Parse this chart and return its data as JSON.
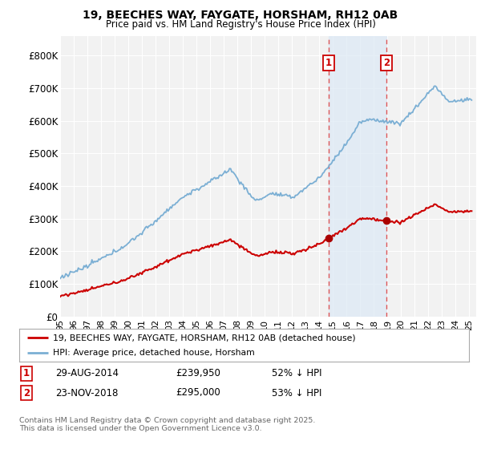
{
  "title1": "19, BEECHES WAY, FAYGATE, HORSHAM, RH12 0AB",
  "title2": "Price paid vs. HM Land Registry's House Price Index (HPI)",
  "background_color": "#ffffff",
  "plot_bg_color": "#f2f2f2",
  "grid_color": "#ffffff",
  "line1_color": "#cc0000",
  "line2_color": "#7bafd4",
  "fill2_color": "#dce9f5",
  "span_color": "#dce9f5",
  "marker_color": "#aa0000",
  "sale1_date": "29-AUG-2014",
  "sale1_price": 239950,
  "sale1_label": "£239,950",
  "sale1_hpi": "52% ↓ HPI",
  "sale2_date": "23-NOV-2018",
  "sale2_price": 295000,
  "sale2_label": "£295,000",
  "sale2_hpi": "53% ↓ HPI",
  "legend1": "19, BEECHES WAY, FAYGATE, HORSHAM, RH12 0AB (detached house)",
  "legend2": "HPI: Average price, detached house, Horsham",
  "footer": "Contains HM Land Registry data © Crown copyright and database right 2025.\nThis data is licensed under the Open Government Licence v3.0.",
  "yticks": [
    0,
    100000,
    200000,
    300000,
    400000,
    500000,
    600000,
    700000,
    800000
  ],
  "ytick_labels": [
    "£0",
    "£100K",
    "£200K",
    "£300K",
    "£400K",
    "£500K",
    "£600K",
    "£700K",
    "£800K"
  ],
  "ylim": [
    0,
    860000
  ],
  "xlim_start": 1995.0,
  "xlim_end": 2025.5,
  "sale1_x": 2014.66,
  "sale2_x": 2018.9
}
